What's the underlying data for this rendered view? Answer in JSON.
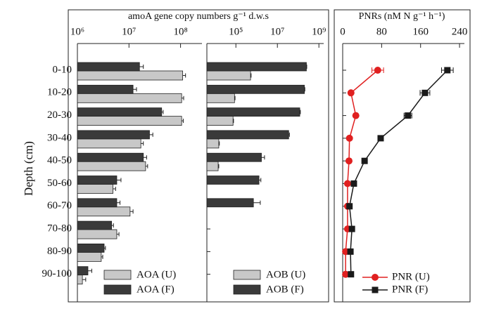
{
  "chart_data": [
    {
      "type": "bar",
      "title": "amoA gene copy numbers g⁻¹ d.w.s",
      "ylabel": "Depth (cm)",
      "categories": [
        "0-10",
        "10-20",
        "20-30",
        "30-40",
        "40-50",
        "50-60",
        "60-70",
        "70-80",
        "80-90",
        "90-100"
      ],
      "log_x": true,
      "xlim": [
        1000000,
        260000000
      ],
      "xticks": [
        {
          "value": 1000000,
          "label": "10⁶"
        },
        {
          "value": 10000000,
          "label": "10⁷"
        },
        {
          "value": 100000000,
          "label": "10⁸"
        }
      ],
      "series": [
        {
          "name": "AOA (U)",
          "color": "#c8c8c8",
          "values": [
            110000000,
            105000000,
            105000000,
            17000000,
            21000000,
            4900000,
            10500000,
            5800000,
            2900000,
            1250000
          ],
          "errors": [
            15000000,
            10000000,
            8000000,
            2000000,
            2000000,
            600000,
            1500000,
            600000,
            200000,
            200000
          ]
        },
        {
          "name": "AOA (F)",
          "color": "#3a3a3a",
          "values": [
            16000000,
            12000000,
            43000000,
            25000000,
            19000000,
            5800000,
            5800000,
            4600000,
            3300000,
            1600000
          ],
          "errors": [
            3000000,
            2000000,
            3000000,
            4000000,
            3000000,
            1200000,
            900000,
            400000,
            200000,
            300000
          ]
        }
      ]
    },
    {
      "type": "bar",
      "log_x": true,
      "xlim": [
        4000,
        1700000000
      ],
      "xticks": [
        {
          "value": 100000,
          "label": "10⁵"
        },
        {
          "value": 10000000,
          "label": "10⁷"
        },
        {
          "value": 1000000000,
          "label": "10⁹"
        }
      ],
      "series": [
        {
          "name": "AOB (U)",
          "color": "#c8c8c8",
          "values": [
            510000,
            86000,
            73000,
            15000,
            14000,
            null,
            null,
            null,
            null,
            null
          ],
          "errors": [
            30000,
            5000,
            4000,
            1000,
            1000,
            null,
            null,
            null,
            null,
            null
          ]
        },
        {
          "name": "AOB (F)",
          "color": "#3a3a3a",
          "values": [
            250000000,
            200000000,
            120000000,
            35000000,
            1700000,
            1300000,
            700000,
            null,
            null,
            null
          ],
          "errors": [
            10000000,
            10000000,
            8000000,
            3000000,
            700000,
            300000,
            800000,
            null,
            null,
            null
          ]
        }
      ]
    },
    {
      "type": "line",
      "title": "PNRs (nM N g⁻¹ h⁻¹)",
      "xlim": [
        0,
        250
      ],
      "xticks": [
        0,
        80,
        160,
        240
      ],
      "series": [
        {
          "name": "PNR (U)",
          "color": "#e02020",
          "marker": "circle",
          "values": [
            72,
            17,
            27,
            14,
            13,
            10,
            10,
            10,
            6,
            6
          ],
          "errors": [
            12,
            2,
            2,
            1,
            1,
            1,
            1,
            1,
            1,
            1
          ]
        },
        {
          "name": "PNR (F)",
          "color": "#1a1a1a",
          "marker": "square",
          "values": [
            215,
            169,
            134,
            78,
            45,
            23,
            14,
            19,
            16,
            17
          ],
          "errors": [
            12,
            10,
            8,
            5,
            3,
            2,
            2,
            2,
            1,
            1
          ]
        }
      ]
    }
  ]
}
